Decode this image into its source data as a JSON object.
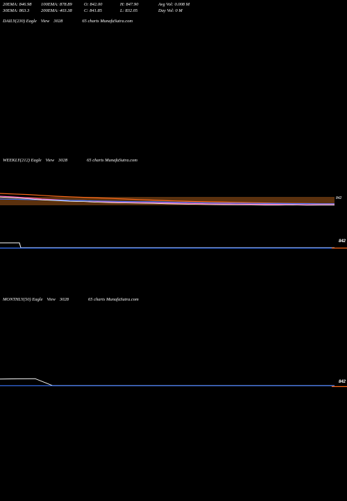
{
  "stats": {
    "rows": [
      [
        "20EMA: 846.98",
        "100EMA: 878.89",
        "O: 842.00",
        "H: 847.90",
        "Avg Vol: 0.008 M"
      ],
      [
        "30EMA: 863.3",
        "200EMA: 403.38",
        "C: 841.85",
        "L: 832.05",
        "Day Vol: 0  M"
      ]
    ]
  },
  "panels": {
    "daily": {
      "label": "DAILY(230) Eagle",
      "view": "View",
      "code": "3028",
      "brand": "65 charts MunafaSutra.com"
    },
    "weekly": {
      "label": "WEEKLY(212) Eagle",
      "view": "View",
      "code": "3028",
      "brand": "65 charts MunafaSutra.com"
    },
    "monthly": {
      "label": "MONTHLY(50) Eagle",
      "view": "View",
      "code": "3028",
      "brand": "65 charts MunafaSutra.com"
    }
  },
  "colors": {
    "background": "#000000",
    "price": "#ffffff",
    "ema_fast": "#3b78ff",
    "ema_slow": "#ff6a1a",
    "ema_pink": "#ff5fbf",
    "volume_band": "#6b3a10"
  },
  "chart_data": [
    {
      "type": "line",
      "title": "WEEKLY(212) Eagle View 3028",
      "xlabel": "",
      "ylabel": "",
      "price_label": "842",
      "series": [
        {
          "values": [
            900,
            895,
            888,
            880,
            875,
            870,
            868,
            863,
            860,
            858,
            856,
            855,
            852,
            850,
            848,
            846,
            845,
            844,
            843,
            842,
            842,
            843,
            841,
            842,
            842
          ]
        },
        {
          "values": [
            920,
            916,
            912,
            906,
            900,
            896,
            892,
            888,
            884,
            880,
            876,
            872,
            868,
            865,
            862,
            860,
            858,
            856,
            854,
            852,
            850,
            849,
            848,
            847,
            847
          ]
        },
        {
          "values": [
            880,
            878,
            876,
            874,
            872,
            870,
            868,
            866,
            864,
            862,
            861,
            860,
            858,
            856,
            854,
            852,
            851,
            850,
            849,
            848,
            848,
            847,
            847,
            846,
            846
          ]
        }
      ],
      "ylim": [
        820,
        940
      ]
    },
    {
      "type": "line",
      "title": "MONTHLY(50) Eagle View 3028",
      "xlabel": "",
      "ylabel": "",
      "price_label": "842",
      "series": [
        {
          "values": [
            1080,
            1090,
            1095,
            842,
            842,
            842,
            842,
            842,
            842,
            842,
            842,
            842,
            842,
            842,
            842,
            842,
            842,
            842,
            842,
            842
          ]
        },
        {
          "values": [
            842,
            842,
            842,
            842,
            842,
            842,
            842,
            842,
            842,
            842,
            842,
            842,
            842,
            842,
            842,
            842,
            842,
            842,
            842,
            842
          ]
        }
      ],
      "ylim": [
        800,
        1200
      ]
    }
  ]
}
